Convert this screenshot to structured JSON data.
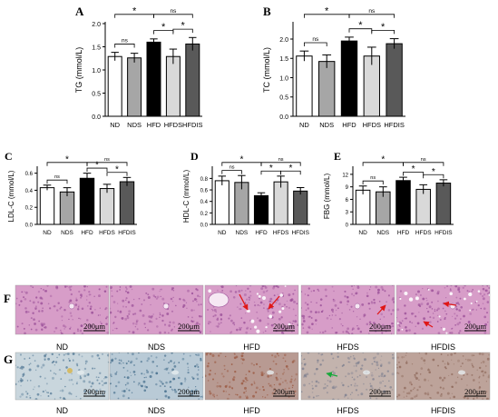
{
  "figure": {
    "categories": [
      "ND",
      "NDS",
      "HFD",
      "HFDS",
      "HFDIS"
    ],
    "bar_colors": [
      "#ffffff",
      "#a6a6a6",
      "#000000",
      "#d9d9d9",
      "#595959"
    ],
    "axis_color": "#000000"
  },
  "chart_data": [
    {
      "panel": "A",
      "type": "bar",
      "ylabel": "TG (mmol/L)",
      "categories": [
        "ND",
        "NDS",
        "HFD",
        "HFDS",
        "HFDIS"
      ],
      "values": [
        1.29,
        1.26,
        1.6,
        1.29,
        1.56
      ],
      "errors": [
        0.09,
        0.1,
        0.07,
        0.16,
        0.14
      ],
      "ylim": [
        0,
        2.0
      ],
      "yticks": [
        {
          "v": 0.0,
          "t": "0.0"
        },
        {
          "v": 0.5,
          "t": "0.5"
        },
        {
          "v": 1.0,
          "t": "1.0"
        },
        {
          "v": 1.5,
          "t": "1.5"
        },
        {
          "v": 2.0,
          "t": "2.0"
        }
      ],
      "comparisons": [
        {
          "a": 0,
          "b": 1,
          "label": "ns",
          "level": 1
        },
        {
          "a": 0,
          "b": 2,
          "label": "*",
          "level": 2
        },
        {
          "a": 2,
          "b": 3,
          "label": "*",
          "level": 1
        },
        {
          "a": 3,
          "b": 4,
          "label": "*",
          "level": 1
        },
        {
          "a": 2,
          "b": 4,
          "label": "ns",
          "level": 2
        }
      ]
    },
    {
      "panel": "B",
      "type": "bar",
      "ylabel": "TC (mmol/L)",
      "categories": [
        "ND",
        "NDS",
        "HFD",
        "HFDS",
        "HFDIS"
      ],
      "values": [
        1.56,
        1.42,
        1.95,
        1.56,
        1.88
      ],
      "errors": [
        0.13,
        0.17,
        0.1,
        0.23,
        0.13
      ],
      "ylim": [
        0,
        2.4
      ],
      "yticks": [
        {
          "v": 0.0,
          "t": "0.0"
        },
        {
          "v": 0.5,
          "t": "0.5"
        },
        {
          "v": 1.0,
          "t": "1.0"
        },
        {
          "v": 1.5,
          "t": "1.5"
        },
        {
          "v": 2.0,
          "t": "2.0"
        }
      ],
      "comparisons": [
        {
          "a": 0,
          "b": 1,
          "label": "ns",
          "level": 1
        },
        {
          "a": 0,
          "b": 2,
          "label": "*",
          "level": 2
        },
        {
          "a": 2,
          "b": 3,
          "label": "*",
          "level": 1
        },
        {
          "a": 3,
          "b": 4,
          "label": "*",
          "level": 1
        },
        {
          "a": 2,
          "b": 4,
          "label": "ns",
          "level": 2
        }
      ]
    },
    {
      "panel": "C",
      "type": "bar",
      "ylabel": "LDL-C (mmol/L)",
      "categories": [
        "ND",
        "NDS",
        "HFD",
        "HFDS",
        "HFDIS"
      ],
      "values": [
        0.43,
        0.38,
        0.54,
        0.42,
        0.5
      ],
      "errors": [
        0.03,
        0.05,
        0.06,
        0.05,
        0.05
      ],
      "ylim": [
        0,
        0.66
      ],
      "yticks": [
        {
          "v": 0.0,
          "t": "0.0"
        },
        {
          "v": 0.2,
          "t": "0.2"
        },
        {
          "v": 0.4,
          "t": "0.4"
        },
        {
          "v": 0.6,
          "t": "0.6"
        }
      ],
      "comparisons": [
        {
          "a": 0,
          "b": 1,
          "label": "ns",
          "level": 1
        },
        {
          "a": 0,
          "b": 2,
          "label": "*",
          "level": 2
        },
        {
          "a": 2,
          "b": 3,
          "label": "*",
          "level": 1
        },
        {
          "a": 3,
          "b": 4,
          "label": "*",
          "level": 1
        },
        {
          "a": 2,
          "b": 4,
          "label": "ns",
          "level": 2
        }
      ]
    },
    {
      "panel": "D",
      "type": "bar",
      "ylabel": "HDL-C (mmol/L)",
      "categories": [
        "ND",
        "NDS",
        "HFD",
        "HFDS",
        "HFDIS"
      ],
      "values": [
        0.76,
        0.73,
        0.5,
        0.74,
        0.58
      ],
      "errors": [
        0.08,
        0.12,
        0.05,
        0.1,
        0.06
      ],
      "ylim": [
        0,
        0.98
      ],
      "yticks": [
        {
          "v": 0.0,
          "t": "0.0"
        },
        {
          "v": 0.2,
          "t": "0.2"
        },
        {
          "v": 0.4,
          "t": "0.4"
        },
        {
          "v": 0.6,
          "t": "0.6"
        },
        {
          "v": 0.8,
          "t": "0.8"
        }
      ],
      "comparisons": [
        {
          "a": 0,
          "b": 1,
          "label": "ns",
          "level": 1
        },
        {
          "a": 0,
          "b": 2,
          "label": "*",
          "level": 2
        },
        {
          "a": 2,
          "b": 3,
          "label": "*",
          "level": 1
        },
        {
          "a": 3,
          "b": 4,
          "label": "*",
          "level": 1
        },
        {
          "a": 2,
          "b": 4,
          "label": "ns",
          "level": 2
        }
      ]
    },
    {
      "panel": "E",
      "type": "bar",
      "ylabel": "FBG (mmol/L)",
      "categories": [
        "ND",
        "NDS",
        "HFD",
        "HFDS",
        "HFDIS"
      ],
      "values": [
        8.2,
        7.8,
        10.5,
        8.4,
        9.9
      ],
      "errors": [
        1.0,
        1.2,
        0.8,
        1.1,
        0.8
      ],
      "ylim": [
        0,
        13.5
      ],
      "yticks": [
        {
          "v": 0,
          "t": "0"
        },
        {
          "v": 3,
          "t": "3"
        },
        {
          "v": 6,
          "t": "6"
        },
        {
          "v": 9,
          "t": "9"
        },
        {
          "v": 12,
          "t": "12"
        }
      ],
      "comparisons": [
        {
          "a": 0,
          "b": 1,
          "label": "ns",
          "level": 1
        },
        {
          "a": 0,
          "b": 2,
          "label": "*",
          "level": 2
        },
        {
          "a": 2,
          "b": 3,
          "label": "*",
          "level": 1
        },
        {
          "a": 3,
          "b": 4,
          "label": "*",
          "level": 1
        },
        {
          "a": 2,
          "b": 4,
          "label": "ns",
          "level": 2
        }
      ]
    }
  ],
  "micrographs": {
    "scale_bar_text": "200μm",
    "rows": [
      {
        "letter": "F",
        "stain": "he",
        "base_color": "#d79dc8",
        "cell_color": "#9a4f98",
        "vein_color": "#f6e8f3",
        "labels": [
          "ND",
          "NDS",
          "HFD",
          "HFDS",
          "HFDIS"
        ],
        "arrow_color": "#e01616",
        "arrows": [
          0,
          0,
          2,
          1,
          2
        ]
      },
      {
        "letter": "G",
        "stain": "ihc",
        "labels": [
          "ND",
          "NDS",
          "HFD",
          "HFDS",
          "HFDIS"
        ],
        "base_colors": [
          "#c9d6dd",
          "#b9cad6",
          "#b89a92",
          "#c3b3ad",
          "#bda39a"
        ],
        "cell_colors": [
          "#5b7f9a",
          "#3f6988",
          "#9a5840",
          "#7d7f8f",
          "#8f6a5c"
        ],
        "arrow_color": "#18a83a",
        "arrows": [
          0,
          0,
          0,
          1,
          0
        ]
      }
    ]
  }
}
